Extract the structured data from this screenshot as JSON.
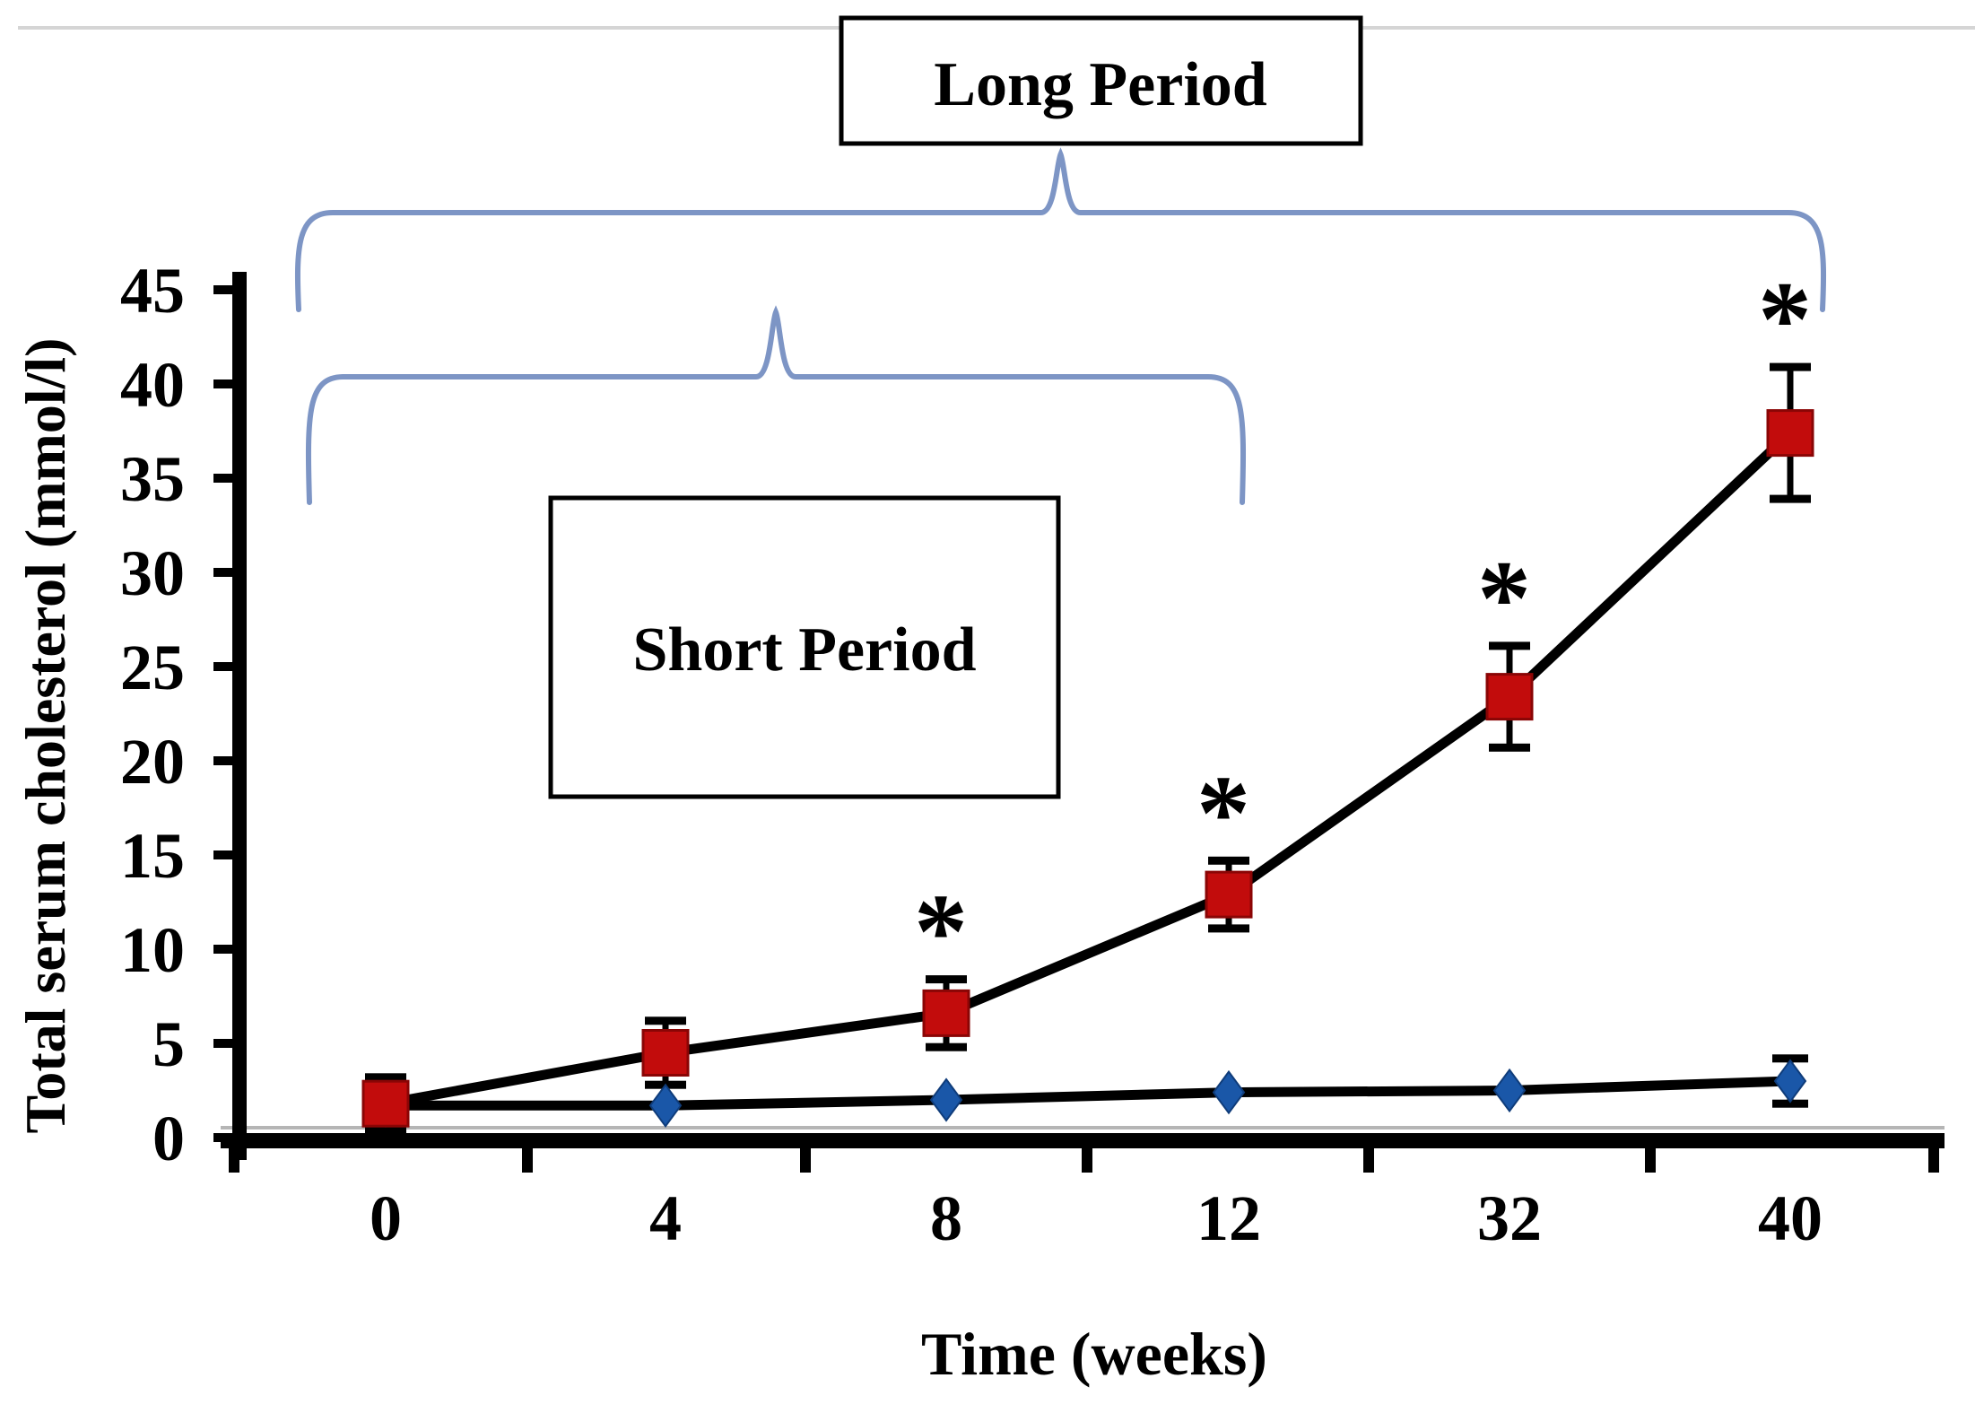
{
  "chart_data": {
    "type": "line",
    "title": "",
    "xlabel": "Time (weeks)",
    "ylabel": "Total serum cholesterol (mmol/l)",
    "x_categories": [
      "0",
      "4",
      "8",
      "12",
      "32",
      "40"
    ],
    "y_tick_labels": [
      "0",
      "5",
      "10",
      "15",
      "20",
      "25",
      "30",
      "35",
      "40",
      "45"
    ],
    "ylim": [
      0,
      45
    ],
    "y_tick_step": 5,
    "grid": "off",
    "legend": "none",
    "series": [
      {
        "name": "red-square-series",
        "marker": "square",
        "marker_color": "#c20c0c",
        "line_color": "#000000",
        "values": [
          1.8,
          4.5,
          6.6,
          12.9,
          23.4,
          37.4
        ],
        "error_bars": [
          1.4,
          1.7,
          1.8,
          1.8,
          2.7,
          3.5
        ],
        "significance": [
          "",
          "",
          "*",
          "*",
          "*",
          "*"
        ]
      },
      {
        "name": "blue-diamond-series",
        "marker": "diamond",
        "marker_color": "#1a57a8",
        "line_color": "#000000",
        "values": [
          1.7,
          1.7,
          2.0,
          2.4,
          2.5,
          3.0
        ],
        "error_bars": [
          0,
          0,
          0,
          0,
          0,
          1.2
        ],
        "significance": [
          "",
          "",
          "",
          "",
          "",
          ""
        ]
      }
    ],
    "annotations": [
      {
        "label": "Long Period",
        "brace_from_category": "0",
        "brace_to_category": "40"
      },
      {
        "label": "Short Period",
        "brace_from_category": "0",
        "brace_to_category": "12"
      }
    ]
  },
  "annotations": {
    "long": {
      "label": "Long Period"
    },
    "short": {
      "label": "Short Period"
    }
  },
  "titles": {
    "x": "Time (weeks)",
    "y": "Total serum cholesterol (mmol/l)"
  },
  "symbols": {
    "significance": "*"
  },
  "colors": {
    "marker_red": "#c20c0c",
    "marker_red_edge": "#8a0505",
    "marker_blue": "#1a57a8",
    "marker_blue_edge": "#0f3c7a",
    "series_line": "#000000",
    "brace_blue": "#7d95c5",
    "axis_black": "#000000",
    "top_rule_gray": "#d5d5d5",
    "axis_shadow_gray": "#b5b5b5",
    "background": "#ffffff"
  }
}
